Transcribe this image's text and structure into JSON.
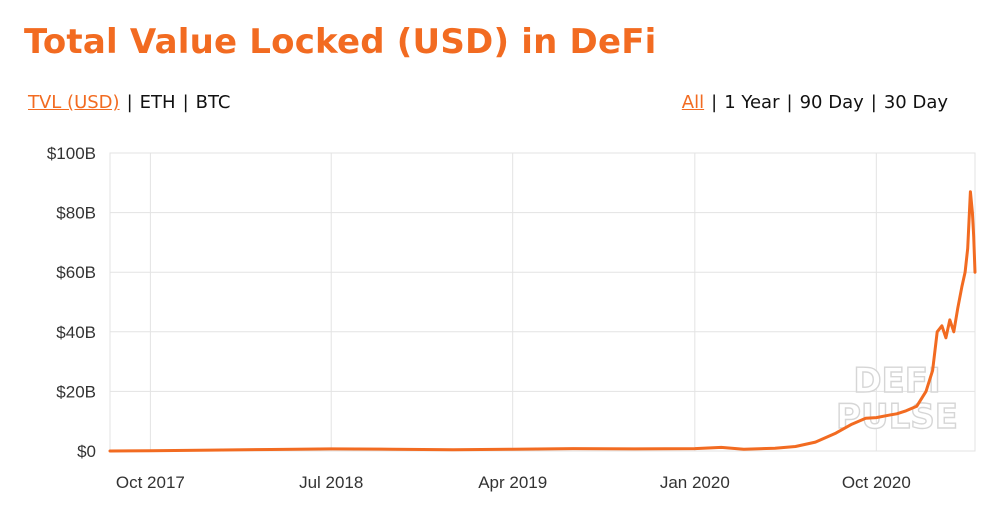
{
  "title": "Total Value Locked (USD) in DeFi",
  "currency_toggle": [
    {
      "label": "TVL (USD)",
      "active": true
    },
    {
      "label": "ETH",
      "active": false
    },
    {
      "label": "BTC",
      "active": false
    }
  ],
  "range_toggle": [
    {
      "label": "All",
      "active": true
    },
    {
      "label": "1 Year",
      "active": false
    },
    {
      "label": "90 Day",
      "active": false
    },
    {
      "label": "30 Day",
      "active": false
    }
  ],
  "separator": "|",
  "watermark": [
    "DEFI",
    "PULSE"
  ],
  "colors": {
    "accent": "#f26b21",
    "grid": "#e3e3e3",
    "text": "#333333"
  },
  "chart_data": {
    "type": "line",
    "title": "Total Value Locked (USD) in DeFi",
    "xlabel": "",
    "ylabel": "",
    "y_unit": "USD",
    "ylim": [
      0,
      100
    ],
    "y_ticks": [
      {
        "value": 0,
        "label": "$0"
      },
      {
        "value": 20,
        "label": "$20B"
      },
      {
        "value": 40,
        "label": "$40B"
      },
      {
        "value": 60,
        "label": "$60B"
      },
      {
        "value": 80,
        "label": "$80B"
      },
      {
        "value": 100,
        "label": "$100B"
      }
    ],
    "xlim": [
      "2017-08-01",
      "2021-02-27"
    ],
    "x_ticks": [
      {
        "date": "2017-10-01",
        "label": "Oct 2017"
      },
      {
        "date": "2018-07-01",
        "label": "Jul 2018"
      },
      {
        "date": "2019-04-01",
        "label": "Apr 2019"
      },
      {
        "date": "2020-01-01",
        "label": "Jan 2020"
      },
      {
        "date": "2020-10-01",
        "label": "Oct 2020"
      }
    ],
    "grid": true,
    "series": [
      {
        "values_unit": "billion USD",
        "points": [
          [
            "2017-08-01",
            0.0
          ],
          [
            "2017-10-01",
            0.1
          ],
          [
            "2018-01-01",
            0.3
          ],
          [
            "2018-04-01",
            0.5
          ],
          [
            "2018-07-01",
            0.7
          ],
          [
            "2018-10-01",
            0.6
          ],
          [
            "2019-01-01",
            0.4
          ],
          [
            "2019-04-01",
            0.6
          ],
          [
            "2019-07-01",
            0.8
          ],
          [
            "2019-10-01",
            0.7
          ],
          [
            "2020-01-01",
            0.8
          ],
          [
            "2020-02-10",
            1.2
          ],
          [
            "2020-03-15",
            0.6
          ],
          [
            "2020-05-01",
            0.9
          ],
          [
            "2020-06-01",
            1.5
          ],
          [
            "2020-07-01",
            3.0
          ],
          [
            "2020-08-01",
            6.0
          ],
          [
            "2020-08-25",
            9.0
          ],
          [
            "2020-09-15",
            11.0
          ],
          [
            "2020-10-01",
            11.2
          ],
          [
            "2020-10-20",
            12.0
          ],
          [
            "2020-11-01",
            12.5
          ],
          [
            "2020-11-15",
            13.5
          ],
          [
            "2020-12-01",
            15.0
          ],
          [
            "2020-12-15",
            20.0
          ],
          [
            "2020-12-25",
            27.0
          ],
          [
            "2021-01-01",
            40.0
          ],
          [
            "2021-01-08",
            42.0
          ],
          [
            "2021-01-14",
            38.0
          ],
          [
            "2021-01-20",
            44.0
          ],
          [
            "2021-01-26",
            40.0
          ],
          [
            "2021-02-01",
            48.0
          ],
          [
            "2021-02-07",
            55.0
          ],
          [
            "2021-02-12",
            60.0
          ],
          [
            "2021-02-16",
            68.0
          ],
          [
            "2021-02-20",
            87.0
          ],
          [
            "2021-02-23",
            80.0
          ],
          [
            "2021-02-25",
            72.0
          ],
          [
            "2021-02-27",
            60.0
          ]
        ]
      }
    ]
  }
}
